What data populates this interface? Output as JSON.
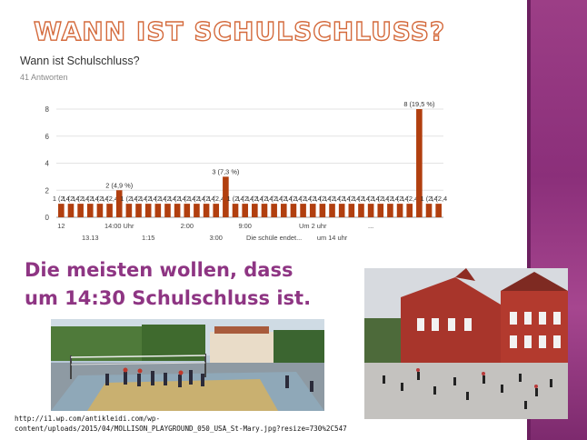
{
  "slide": {
    "title": "WANN IST SCHULSCHLUSS?",
    "conclusion_line1": "Die meisten wollen, dass",
    "conclusion_line2": "um 14:30 Schulschluss ist.",
    "source_line1": "http://i1.wp.com/antikleidi.com/wp-",
    "source_line2": "content/uploads/2015/04/MOLLISON_PLAYGROUND_050_USA_St-Mary.jpg?resize=730%2C547"
  },
  "chart_data": {
    "type": "bar",
    "title": "Wann ist Schulschluss?",
    "subtitle": "41 Antworten",
    "color": "#b13f0f",
    "ylim": [
      0,
      8
    ],
    "yticks": [
      0,
      2,
      4,
      6,
      8
    ],
    "grid": true,
    "values": [
      1,
      1,
      1,
      1,
      1,
      1,
      2,
      1,
      1,
      1,
      1,
      1,
      1,
      1,
      1,
      1,
      1,
      3,
      1,
      1,
      1,
      1,
      1,
      1,
      1,
      1,
      1,
      1,
      1,
      1,
      1,
      1,
      1,
      1,
      1,
      1,
      1,
      8,
      1,
      1
    ],
    "bar_labels": [
      "1 (2,4",
      "1 (2,4",
      "1 (2,4",
      "1 (2,4",
      "1 (2,4",
      "1 (2,4",
      "2 (4,9 %)",
      "1 (2,4",
      "1 (2,4",
      "1 (2,4",
      "1 (2,4",
      "1 (2,4",
      "1 (2,4",
      "1 (2,4",
      "1 (2,4",
      "1 (2,4",
      "1 (2,4",
      "3 (7,3 %)",
      "1 (2,4",
      "1 (2,4",
      "1 (2,4",
      "1 (2,4",
      "1 (2,4",
      "1 (2,4",
      "1 (2,4",
      "1 (2,4",
      "1 (2,4",
      "1 (2,4",
      "1 (2,4",
      "1 (2,4",
      "1 (2,4",
      "1 (2,4",
      "1 (2,4",
      "1 (2,4",
      "1 (2,4",
      "1 (2,4",
      "1 (2,4",
      "8 (19,5 %)",
      "1 (2,4",
      "1 (2,4"
    ],
    "x_labels_row1": [
      {
        "index": 0,
        "text": "12"
      },
      {
        "index": 6,
        "text": "14:00 Uhr"
      },
      {
        "index": 13,
        "text": "2:00"
      },
      {
        "index": 19,
        "text": "9:00"
      },
      {
        "index": 26,
        "text": "Um 2 uhr"
      },
      {
        "index": 32,
        "text": "..."
      }
    ],
    "x_labels_row2": [
      {
        "index": 3,
        "text": "13.13"
      },
      {
        "index": 9,
        "text": "1:15"
      },
      {
        "index": 16,
        "text": "3:00"
      },
      {
        "index": 22,
        "text": "Die schüle endet..."
      },
      {
        "index": 28,
        "text": "um 14 uhr"
      }
    ]
  }
}
